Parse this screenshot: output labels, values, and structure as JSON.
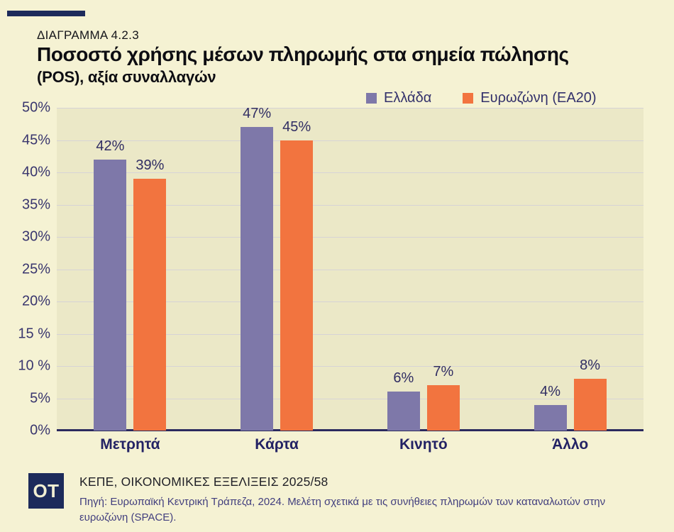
{
  "header": {
    "kicker": "ΔΙΑΓΡΑΜΜΑ 4.2.3",
    "title_line1": "Ποσοστό χρήσης μέσων πληρωμής στα σημεία πώλησης",
    "title_line2": "(POS), αξία συναλλαγών"
  },
  "legend": {
    "items": [
      {
        "label": "Ελλάδα",
        "color": "#7e78a9"
      },
      {
        "label": "Ευρωζώνη (ΕΑ20)",
        "color": "#f2743f"
      }
    ]
  },
  "chart_data": {
    "type": "bar",
    "categories": [
      "Μετρητά",
      "Κάρτα",
      "Κινητό",
      "Άλλο"
    ],
    "series": [
      {
        "name": "Ελλάδα",
        "color": "#7e78a9",
        "values": [
          42,
          47,
          6,
          4
        ]
      },
      {
        "name": "Ευρωζώνη (ΕΑ20)",
        "color": "#f2743f",
        "values": [
          39,
          45,
          7,
          8
        ]
      }
    ],
    "value_labels": [
      [
        "42%",
        "47%",
        "6%",
        "4%"
      ],
      [
        "39%",
        "45%",
        "7%",
        "8%"
      ]
    ],
    "title": "Ποσοστό χρήσης μέσων πληρωμής στα σημεία πώλησης (POS), αξία συναλλαγών",
    "xlabel": "",
    "ylabel": "",
    "ylim": [
      0,
      50
    ],
    "y_tick_step": 5,
    "y_tick_labels": [
      "0%",
      "5%",
      "10 %",
      "15 %",
      "20%",
      "25%",
      "30%",
      "35%",
      "40%",
      "45%",
      "50%"
    ],
    "grid": true,
    "legend_position": "top"
  },
  "footer": {
    "logo": "OT",
    "publication": "ΚΕΠΕ, ΟΙΚΟΝΟΜΙΚΕΣ ΕΞΕΛΙΞΕΙΣ 2025/58",
    "source": "Πηγή: Ευρωπαϊκή Κεντρική Τράπεζα, 2024. Μελέτη σχετικά με τις συνήθειες πληρωμών των καταναλωτών στην ευρωζώνη (SPACE)."
  },
  "colors": {
    "page_background": "#f5f2d3",
    "plot_background": "#ebe8c7",
    "gridline": "#d6d3d6",
    "axis": "#2b2a5e",
    "navy_accent": "#1d2b5b",
    "series_greece": "#7e78a9",
    "series_eurozone": "#f2743f",
    "text_navy": "#33316b"
  }
}
